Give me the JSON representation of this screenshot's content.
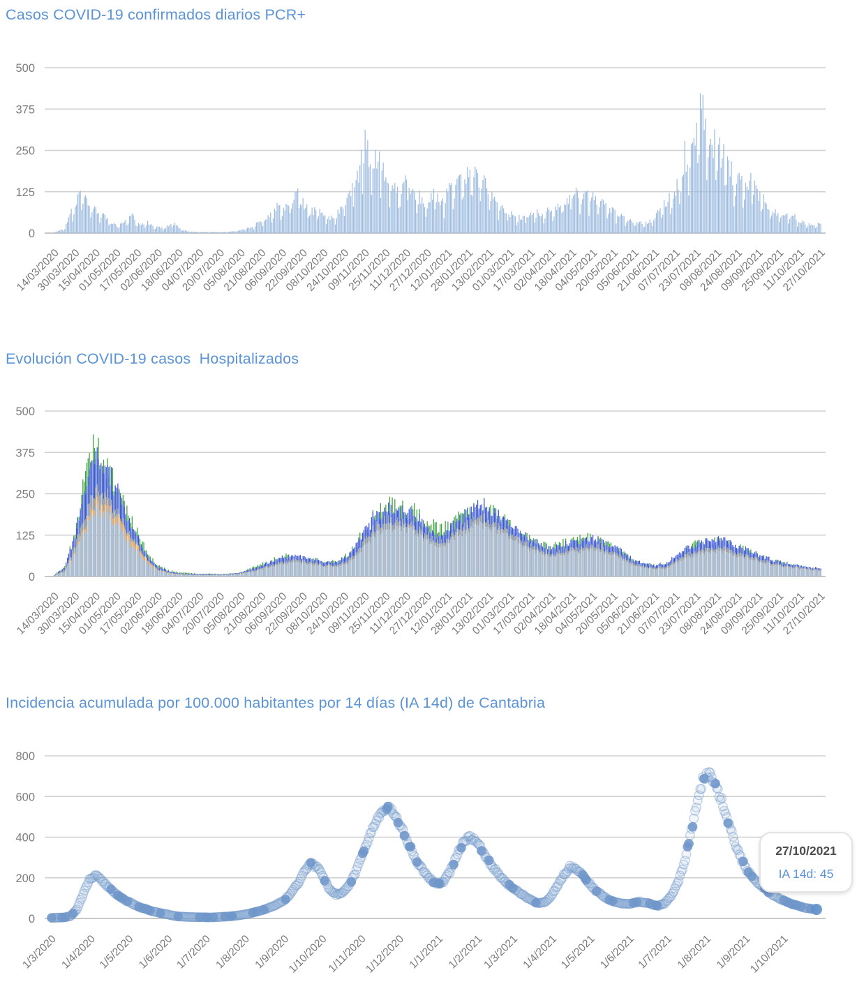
{
  "colors": {
    "title_blue": "#5b94d6",
    "axis_label_gray": "#7d7d7d",
    "gridline": "#cfcfcf",
    "gridline_top": "#b5b5b5",
    "pcr_bar_blue": "#9dbcdf",
    "hosp_lightblue": "#a9c3e2",
    "hosp_orange": "#f7b366",
    "hosp_gray": "#a3a3a3",
    "hosp_blue": "#3d53e1",
    "hosp_green": "#3aa43b",
    "ia_dot_blue": "#6f96c9",
    "tooltip_border": "#e3e3e3",
    "tooltip_date_gray": "#4d4d4d",
    "tooltip_value_blue": "#5b94d6"
  },
  "charts": [
    {
      "id": "pcr",
      "title": "Casos COVID-19 confirmados diarios PCR+",
      "chart_data": {
        "type": "bar",
        "title": "Casos COVID-19 confirmados diarios PCR+",
        "ylim": [
          0,
          500
        ],
        "y_ticks": [
          0,
          125,
          250,
          375,
          500
        ],
        "grid": true,
        "x_start_date": "14/03/2020",
        "x_end_date": "27/10/2021",
        "x_tick_labels": [
          "14/03/2020",
          "30/03/2020",
          "15/04/2020",
          "01/05/2020",
          "17/05/2020",
          "02/06/2020",
          "18/06/2020",
          "04/07/2020",
          "20/07/2020",
          "05/08/2020",
          "21/08/2020",
          "06/09/2020",
          "22/09/2020",
          "08/10/2020",
          "24/10/2020",
          "09/11/2020",
          "25/11/2020",
          "11/12/2020",
          "27/12/2020",
          "12/01/2021",
          "28/01/2021",
          "13/02/2021",
          "01/03/2021",
          "17/03/2021",
          "02/04/2021",
          "18/04/2021",
          "04/05/2021",
          "20/05/2021",
          "05/06/2021",
          "21/06/2021",
          "07/07/2021",
          "23/07/2021",
          "08/08/2021",
          "24/08/2021",
          "09/09/2021",
          "25/09/2021",
          "11/10/2021",
          "27/10/2021"
        ],
        "sample_interval_days": 4,
        "values": [
          3,
          8,
          15,
          60,
          90,
          150,
          100,
          95,
          75,
          60,
          45,
          30,
          25,
          30,
          40,
          55,
          30,
          25,
          35,
          20,
          18,
          15,
          22,
          30,
          18,
          8,
          5,
          4,
          3,
          4,
          3,
          4,
          3,
          4,
          5,
          6,
          10,
          14,
          20,
          28,
          38,
          45,
          55,
          85,
          70,
          90,
          100,
          130,
          90,
          75,
          65,
          70,
          55,
          45,
          55,
          65,
          90,
          110,
          150,
          200,
          260,
          230,
          235,
          225,
          170,
          140,
          125,
          115,
          160,
          140,
          120,
          100,
          95,
          110,
          120,
          90,
          120,
          150,
          160,
          175,
          185,
          175,
          160,
          150,
          120,
          100,
          85,
          70,
          60,
          50,
          45,
          50,
          55,
          50,
          55,
          60,
          70,
          85,
          95,
          105,
          115,
          120,
          105,
          110,
          115,
          100,
          95,
          80,
          65,
          55,
          45,
          38,
          35,
          30,
          28,
          35,
          50,
          70,
          90,
          110,
          140,
          180,
          230,
          280,
          330,
          380,
          300,
          280,
          260,
          240,
          210,
          180,
          160,
          140,
          150,
          160,
          120,
          100,
          85,
          70,
          60,
          55,
          48,
          42,
          38,
          32,
          28,
          25,
          28
        ]
      }
    },
    {
      "id": "hosp",
      "title": "Evolución COVID-19 casos  Hospitalizados",
      "chart_data": {
        "type": "bar",
        "title": "Evolución COVID-19 casos  Hospitalizados",
        "ylim": [
          0,
          500
        ],
        "y_ticks": [
          0,
          125,
          250,
          375,
          500
        ],
        "grid": true,
        "x_start_date": "14/03/2020",
        "x_end_date": "27/10/2021",
        "x_tick_labels": [
          "14/03/2020",
          "30/03/2020",
          "15/04/2020",
          "01/05/2020",
          "17/05/2020",
          "02/06/2020",
          "18/06/2020",
          "04/07/2020",
          "20/07/2020",
          "05/08/2020",
          "21/08/2020",
          "06/09/2020",
          "22/09/2020",
          "08/10/2020",
          "24/10/2020",
          "09/11/2020",
          "25/11/2020",
          "11/12/2020",
          "27/12/2020",
          "12/01/2021",
          "28/01/2021",
          "13/02/2021",
          "01/03/2021",
          "17/03/2021",
          "02/04/2021",
          "18/04/2021",
          "04/05/2021",
          "20/05/2021",
          "05/06/2021",
          "21/06/2021",
          "07/07/2021",
          "23/07/2021",
          "08/08/2021",
          "24/08/2021",
          "09/09/2021",
          "25/09/2021",
          "11/10/2021",
          "27/10/2021"
        ],
        "sample_interval_days": 8,
        "series": [
          {
            "name": "total-green",
            "color": "#3aa43b",
            "values": [
              5,
              30,
              128,
              295,
              400,
              345,
              272,
              196,
              128,
              68,
              34,
              18,
              12,
              10,
              8,
              8,
              7,
              9,
              13,
              24,
              36,
              48,
              60,
              60,
              56,
              50,
              44,
              45,
              55,
              90,
              140,
              188,
              208,
              210,
              200,
              188,
              165,
              145,
              150,
              178,
              200,
              205,
              195,
              175,
              150,
              128,
              110,
              96,
              88,
              100,
              108,
              115,
              112,
              100,
              88,
              66,
              45,
              36,
              32,
              38,
              58,
              80,
              96,
              105,
              108,
              100,
              88,
              76,
              62,
              52,
              43,
              36,
              30,
              26,
              23
            ]
          },
          {
            "name": "blue",
            "color": "#3d53e1",
            "values": [
              4,
              28,
              120,
              280,
              380,
              330,
              260,
              185,
              120,
              62,
              30,
              16,
              10,
              8,
              7,
              7,
              6,
              8,
              12,
              22,
              34,
              45,
              58,
              62,
              58,
              52,
              45,
              42,
              52,
              85,
              135,
              180,
              200,
              202,
              190,
              175,
              148,
              125,
              138,
              170,
              195,
              215,
              205,
              182,
              155,
              130,
              112,
              95,
              85,
              95,
              102,
              110,
              118,
              105,
              92,
              70,
              48,
              38,
              33,
              40,
              60,
              82,
              100,
              108,
              112,
              105,
              92,
              80,
              66,
              55,
              45,
              38,
              32,
              27,
              24
            ]
          },
          {
            "name": "gray",
            "color": "#a3a3a3",
            "values": [
              3,
              20,
              90,
              190,
              270,
              245,
              195,
              145,
              95,
              50,
              22,
              12,
              8,
              6,
              5,
              5,
              5,
              6,
              10,
              17,
              26,
              35,
              44,
              48,
              46,
              42,
              36,
              34,
              40,
              65,
              105,
              145,
              168,
              170,
              160,
              145,
              122,
              105,
              112,
              140,
              160,
              175,
              168,
              150,
              128,
              108,
              92,
              78,
              70,
              76,
              82,
              88,
              92,
              85,
              74,
              55,
              38,
              29,
              26,
              30,
              45,
              64,
              78,
              85,
              88,
              82,
              72,
              62,
              52,
              44,
              36,
              32,
              27,
              23,
              20
            ]
          },
          {
            "name": "orange",
            "color": "#f7b366",
            "values": [
              2,
              16,
              75,
              160,
              225,
              215,
              180,
              135,
              90,
              48,
              20,
              11,
              7,
              5,
              4,
              4,
              4,
              5,
              8,
              14,
              22,
              30,
              38,
              42,
              40,
              36,
              32,
              30,
              34,
              55,
              90,
              125,
              150,
              152,
              145,
              130,
              110,
              95,
              100,
              125,
              145,
              158,
              150,
              135,
              115,
              95,
              82,
              70,
              62,
              68,
              72,
              78,
              82,
              75,
              65,
              48,
              32,
              25,
              22,
              25,
              38,
              55,
              68,
              75,
              78,
              72,
              62,
              55,
              45,
              38,
              32,
              28,
              24,
              20,
              17
            ]
          },
          {
            "name": "lightblue",
            "color": "#a9c3e2",
            "values": [
              2,
              15,
              70,
              150,
              205,
              195,
              160,
              115,
              75,
              40,
              18,
              10,
              6,
              5,
              4,
              4,
              4,
              5,
              8,
              14,
              22,
              30,
              38,
              42,
              40,
              36,
              32,
              30,
              34,
              55,
              90,
              125,
              150,
              152,
              145,
              130,
              110,
              95,
              100,
              125,
              145,
              158,
              150,
              135,
              115,
              95,
              82,
              70,
              62,
              68,
              72,
              78,
              82,
              75,
              65,
              48,
              32,
              25,
              22,
              25,
              38,
              55,
              68,
              75,
              78,
              72,
              62,
              55,
              45,
              38,
              32,
              28,
              24,
              20,
              17
            ]
          }
        ]
      }
    },
    {
      "id": "ia14d",
      "title": "Incidencia acumulada por 100.000 habitantes por 14 días (IA 14d) de Cantabria",
      "chart_data": {
        "type": "scatter",
        "title": "Incidencia acumulada por 100.000 habitantes por 14 días (IA 14d) de Cantabria",
        "ylim": [
          0,
          800
        ],
        "y_ticks": [
          0,
          200,
          400,
          600,
          800
        ],
        "grid": true,
        "x_start_date": "1/3/2020",
        "x_end_date": "27/10/2021",
        "x_tick_labels": [
          "1/3/2020",
          "1/4/2020",
          "1/5/2020",
          "1/6/2020",
          "1/7/2020",
          "1/8/2020",
          "1/9/2020",
          "1/10/2020",
          "1/11/2020",
          "1/12/2020",
          "1/1/2021",
          "1/2/2021",
          "1/3/2021",
          "1/4/2021",
          "1/5/2021",
          "1/6/2021",
          "1/7/2021",
          "1/8/2021",
          "1/9/2021",
          "1/10/2021"
        ],
        "x_tick_day_offsets": [
          0,
          31,
          61,
          92,
          122,
          153,
          184,
          214,
          245,
          275,
          306,
          337,
          365,
          396,
          426,
          457,
          487,
          518,
          549,
          579
        ],
        "sample_interval_days": 5,
        "values": [
          3,
          4,
          5,
          12,
          45,
          120,
          195,
          212,
          185,
          155,
          125,
          100,
          85,
          70,
          55,
          45,
          35,
          28,
          22,
          15,
          10,
          8,
          7,
          6,
          6,
          5,
          6,
          8,
          10,
          13,
          17,
          22,
          30,
          38,
          48,
          60,
          75,
          95,
          130,
          175,
          230,
          268,
          255,
          200,
          140,
          118,
          125,
          160,
          220,
          300,
          380,
          450,
          520,
          553,
          530,
          470,
          400,
          330,
          270,
          225,
          190,
          168,
          180,
          230,
          300,
          370,
          400,
          385,
          340,
          290,
          245,
          205,
          172,
          148,
          128,
          108,
          88,
          74,
          80,
          110,
          160,
          215,
          252,
          245,
          215,
          175,
          140,
          115,
          95,
          82,
          75,
          70,
          75,
          82,
          78,
          68,
          62,
          75,
          110,
          170,
          260,
          400,
          560,
          680,
          710,
          660,
          580,
          480,
          380,
          300,
          240,
          200,
          165,
          140,
          118,
          100,
          85,
          72,
          62,
          54,
          48,
          45
        ],
        "last_point": {
          "date": "27/10/2021",
          "value": 45
        }
      },
      "tooltip": {
        "date": "27/10/2021",
        "label": "IA 14d: 45"
      }
    }
  ]
}
